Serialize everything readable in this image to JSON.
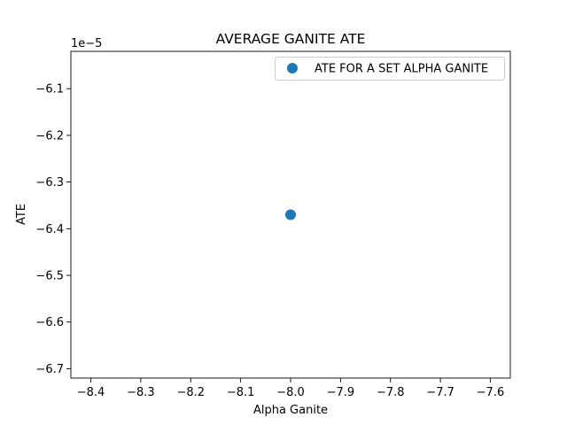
{
  "chart_data": {
    "type": "scatter",
    "title": "AVERAGE GANITE ATE",
    "xlabel": "Alpha Ganite",
    "ylabel": "ATE",
    "y_offset_text": "1e−5",
    "xlim": [
      -8.44,
      -7.56
    ],
    "ylim": [
      -6.72,
      -6.02
    ],
    "x_ticks": [
      -8.4,
      -8.3,
      -8.2,
      -8.1,
      -8.0,
      -7.9,
      -7.8,
      -7.7,
      -7.6
    ],
    "x_tick_labels": [
      "−8.4",
      "−8.3",
      "−8.2",
      "−8.1",
      "−8.0",
      "−7.9",
      "−7.8",
      "−7.7",
      "−7.6"
    ],
    "y_ticks": [
      -6.1,
      -6.2,
      -6.3,
      -6.4,
      -6.5,
      -6.6,
      -6.7
    ],
    "y_tick_labels": [
      "−6.1",
      "−6.2",
      "−6.3",
      "−6.4",
      "−6.5",
      "−6.6",
      "−6.7"
    ],
    "grid": false,
    "legend_position": "top-right",
    "series": [
      {
        "name": "ATE FOR A SET ALPHA GANITE",
        "color": "#1f77b4",
        "points": [
          {
            "x": -8.0,
            "y": -6.37
          }
        ]
      }
    ]
  }
}
